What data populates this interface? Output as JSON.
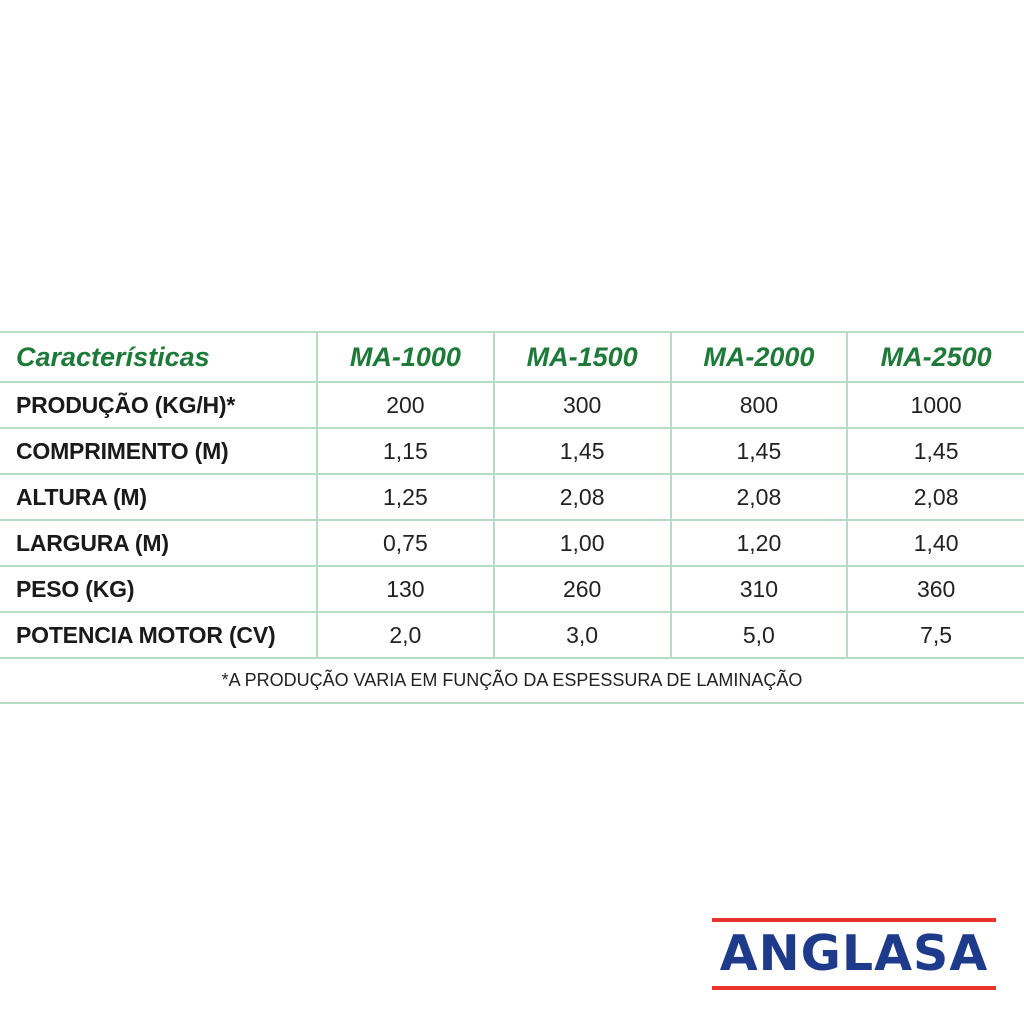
{
  "table": {
    "header": {
      "label": "Características",
      "models": [
        "MA-1000",
        "MA-1500",
        "MA-2000",
        "MA-2500"
      ]
    },
    "rows": [
      {
        "label": "PRODUÇÃO (KG/H)*",
        "values": [
          "200",
          "300",
          "800",
          "1000"
        ]
      },
      {
        "label": "COMPRIMENTO (M)",
        "values": [
          "1,15",
          "1,45",
          "1,45",
          "1,45"
        ]
      },
      {
        "label": "ALTURA (M)",
        "values": [
          "1,25",
          "2,08",
          "2,08",
          "2,08"
        ]
      },
      {
        "label": "LARGURA (M)",
        "values": [
          "0,75",
          "1,00",
          "1,20",
          "1,40"
        ]
      },
      {
        "label": "PESO (KG)",
        "values": [
          "130",
          "260",
          "310",
          "360"
        ]
      },
      {
        "label": "POTENCIA MOTOR (CV)",
        "values": [
          "2,0",
          "3,0",
          "5,0",
          "7,5"
        ]
      }
    ],
    "footnote": "*A PRODUÇÃO VARIA EM FUNÇÃO DA ESPESSURA DE LAMINAÇÃO"
  },
  "logo": {
    "text": "ANGLASA"
  },
  "colors": {
    "header_green": "#1e7a38",
    "rule_green": "#b8dcc2",
    "logo_blue": "#1e3a8a",
    "logo_red": "#e8332a"
  }
}
